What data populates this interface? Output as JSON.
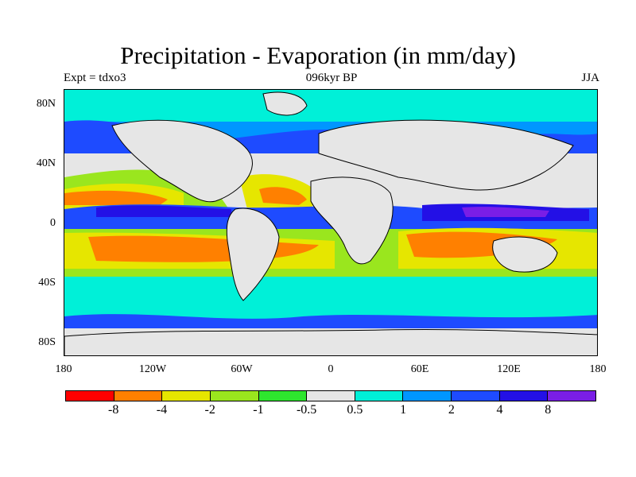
{
  "title": "Precipitation - Evaporation (in mm/day)",
  "subtitle_left": "Expt = tdxo3",
  "subtitle_center": "096kyr BP",
  "subtitle_right": "JJA",
  "lat_labels": [
    "80N",
    "40N",
    "0",
    "40S",
    "80S"
  ],
  "lon_labels": [
    "180",
    "120W",
    "60W",
    "0",
    "60E",
    "120E",
    "180"
  ],
  "colorbar": {
    "colors": [
      "#ff0000",
      "#ff8000",
      "#e6e600",
      "#9ae61e",
      "#2ee62e",
      "#e6e6e6",
      "#00f0d8",
      "#0096ff",
      "#1e4bff",
      "#2310e6",
      "#7a1ee6"
    ],
    "labels": [
      "-8",
      "-4",
      "-2",
      "-1",
      "-0.5",
      "0.5",
      "1",
      "2",
      "4",
      "8"
    ]
  }
}
